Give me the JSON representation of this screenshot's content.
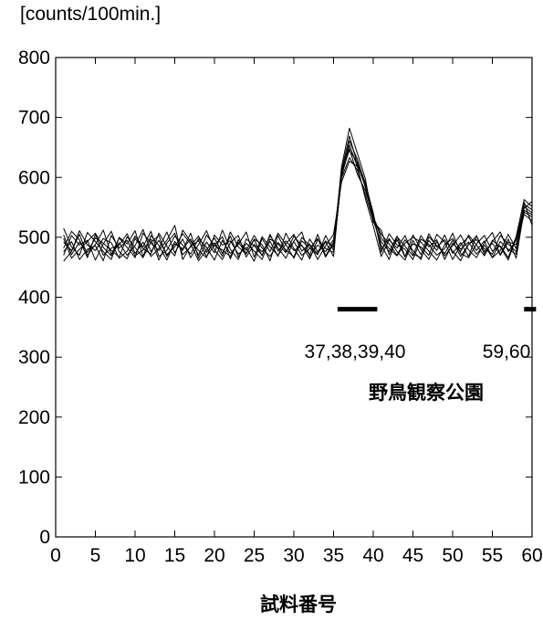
{
  "chart_data": {
    "type": "line",
    "title": "",
    "ylabel": "[counts/100min.]",
    "xlabel": "試料番号",
    "xlim": [
      0,
      60
    ],
    "ylim": [
      0,
      800
    ],
    "xticks": [
      0,
      5,
      10,
      15,
      20,
      25,
      30,
      35,
      40,
      45,
      50,
      55,
      60
    ],
    "yticks": [
      0,
      100,
      200,
      300,
      400,
      500,
      600,
      700,
      800
    ],
    "grid": false,
    "line_color": "#000000",
    "x": [
      1,
      2,
      3,
      4,
      5,
      6,
      7,
      8,
      9,
      10,
      11,
      12,
      13,
      14,
      15,
      16,
      17,
      18,
      19,
      20,
      21,
      22,
      23,
      24,
      25,
      26,
      27,
      28,
      29,
      30,
      31,
      32,
      33,
      34,
      35,
      36,
      37,
      38,
      39,
      40,
      41,
      42,
      43,
      44,
      45,
      46,
      47,
      48,
      49,
      50,
      51,
      52,
      53,
      54,
      55,
      56,
      57,
      58,
      59,
      60
    ],
    "series": [
      {
        "values": [
          492,
          478,
          505,
          470,
          488,
          512,
          471,
          499,
          483,
          466,
          507,
          490,
          478,
          495,
          520,
          463,
          486,
          502,
          475,
          491,
          468,
          509,
          484,
          472,
          497,
          488,
          461,
          503,
          476,
          493,
          470,
          481,
          498,
          467,
          489,
          610,
          645,
          625,
          583,
          533,
          505,
          489,
          470,
          496,
          478,
          463,
          501,
          486,
          473,
          495,
          468,
          488,
          502,
          476,
          490,
          471,
          497,
          465,
          545,
          538
        ]
      },
      {
        "values": [
          470,
          503,
          487,
          495,
          462,
          489,
          510,
          476,
          464,
          498,
          481,
          472,
          507,
          485,
          469,
          512,
          493,
          478,
          466,
          504,
          487,
          494,
          472,
          483,
          460,
          498,
          476,
          507,
          488,
          465,
          494,
          482,
          471,
          503,
          478,
          598,
          633,
          612,
          571,
          528,
          493,
          476,
          502,
          468,
          489,
          484,
          470,
          505,
          492,
          463,
          487,
          501,
          478,
          494,
          466,
          493,
          480,
          472,
          555,
          546
        ]
      },
      {
        "values": [
          515,
          484,
          470,
          508,
          493,
          476,
          463,
          500,
          489,
          511,
          468,
          503,
          486,
          462,
          493,
          478,
          507,
          465,
          492,
          474,
          512,
          480,
          463,
          497,
          486,
          470,
          503,
          482,
          465,
          494,
          509,
          468,
          487,
          476,
          496,
          605,
          661,
          630,
          590,
          541,
          475,
          506,
          487,
          480,
          463,
          497,
          488,
          470,
          481,
          507,
          473,
          466,
          489,
          503,
          477,
          486,
          466,
          501,
          563,
          551
        ]
      },
      {
        "values": [
          482,
          510,
          496,
          466,
          505,
          470,
          482,
          487,
          506,
          473,
          492,
          468,
          481,
          509,
          474,
          497,
          466,
          488,
          511,
          479,
          463,
          491,
          503,
          467,
          488,
          476,
          493,
          468,
          507,
          481,
          462,
          497,
          476,
          494,
          483,
          617,
          682,
          640,
          598,
          525,
          512,
          471,
          496,
          467,
          504,
          480,
          463,
          493,
          469,
          486,
          504,
          479,
          466,
          491,
          508,
          470,
          492,
          488,
          538,
          528
        ]
      },
      {
        "values": [
          460,
          476,
          511,
          487,
          478,
          498,
          491,
          465,
          477,
          502,
          484,
          510,
          468,
          478,
          502,
          487,
          472,
          498,
          483,
          462,
          495,
          473,
          488,
          509,
          467,
          501,
          484,
          470,
          489,
          505,
          477,
          489,
          463,
          486,
          505,
          592,
          627,
          618,
          565,
          519,
          468,
          496,
          482,
          503,
          472,
          466,
          495,
          478,
          504,
          473,
          491,
          468,
          503,
          472,
          493,
          509,
          476,
          495,
          548,
          560
        ]
      },
      {
        "values": [
          498,
          465,
          480,
          493,
          507,
          483,
          469,
          491,
          470,
          486,
          513,
          476,
          495,
          471,
          484,
          506,
          489,
          461,
          479,
          499,
          473,
          502,
          467,
          490,
          477,
          463,
          497,
          489,
          474,
          502,
          486,
          471,
          505,
          469,
          492,
          603,
          648,
          605,
          578,
          535,
          499,
          481,
          469,
          490,
          500,
          492,
          477,
          462,
          488,
          498,
          480,
          492,
          472,
          487,
          466,
          478,
          505,
          481,
          559,
          520
        ]
      },
      {
        "values": [
          476,
          493,
          463,
          480,
          486,
          461,
          503,
          482,
          495,
          469,
          479,
          497,
          462,
          490,
          507,
          471,
          484,
          495,
          468,
          487,
          501,
          464,
          496,
          478,
          503,
          482,
          468,
          491,
          479,
          467,
          500,
          486,
          473,
          492,
          468,
          611,
          669,
          622,
          585,
          530,
          487,
          463,
          501,
          485,
          469,
          503,
          484,
          496,
          463,
          490,
          476,
          504,
          487,
          469,
          495,
          484,
          462,
          499,
          551,
          541
        ]
      },
      {
        "values": [
          504,
          471,
          492,
          475,
          499,
          490,
          478,
          467,
          501,
          483,
          466,
          492,
          503,
          468,
          489,
          481,
          497,
          470,
          504,
          486,
          479,
          468,
          492,
          473,
          496,
          469,
          505,
          477,
          494,
          478,
          487,
          464,
          496,
          481,
          475,
          600,
          654,
          618,
          592,
          537,
          480,
          498,
          476,
          462,
          495,
          471,
          506,
          484,
          496,
          477,
          461,
          489,
          496,
          481,
          472,
          503,
          489,
          476,
          542,
          534
        ]
      }
    ]
  },
  "annotations": {
    "group1_label": "37,38,39,40",
    "group2_label": "59,60",
    "site_label": "野鳥観察公園"
  },
  "group_bars": [
    {
      "from": 35.5,
      "to": 40.5,
      "y": 380
    },
    {
      "from": 59.0,
      "to": 60.5,
      "y": 380
    }
  ]
}
